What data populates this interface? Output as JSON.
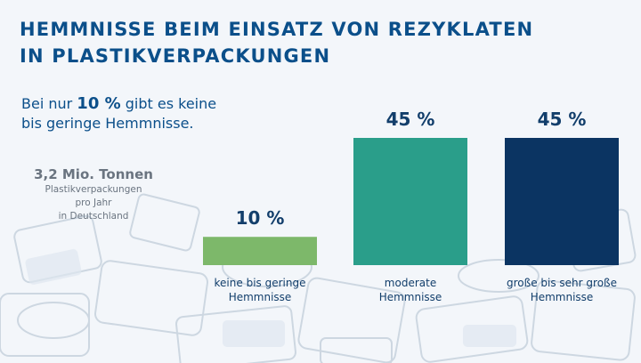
{
  "header": {
    "title_line1": "HEMMNISSE BEIM EINSATZ VON REZYKLATEN",
    "title_line2": "IN PLASTIKVERPACKUNGEN"
  },
  "intro": {
    "prefix": "Bei nur ",
    "highlight": "10 %",
    "suffix": " gibt es keine",
    "line2": "bis geringe Hemmnisse."
  },
  "volume": {
    "amount": "3,2 Mio. Tonnen",
    "line1": "Plastikverpackungen",
    "line2": "pro Jahr",
    "line3": "in Deutschland"
  },
  "chart_data": {
    "type": "bar",
    "categories": [
      [
        "keine bis geringe",
        "Hemmnisse"
      ],
      [
        "moderate",
        "Hemmnisse"
      ],
      [
        "große bis sehr große",
        "Hemmnisse"
      ]
    ],
    "values": [
      10,
      45,
      45
    ],
    "data_labels": [
      "10 %",
      "45 %",
      "45 %"
    ],
    "colors": [
      "#7db86a",
      "#2a9e8a",
      "#0b3462"
    ],
    "label_color": "#123e6b",
    "ylim": [
      0,
      45
    ],
    "grid": false,
    "legend": "none"
  }
}
